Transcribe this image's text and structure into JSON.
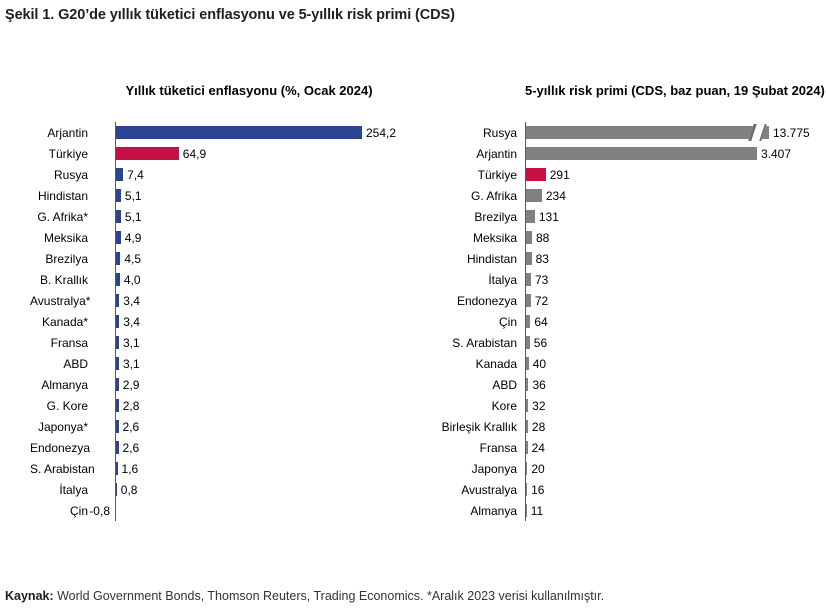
{
  "page_title": "Şekil 1. G20’de yıllık tüketici enflasyonu ve 5-yıllık risk primi (CDS)",
  "footer": {
    "source_label": "Kaynak:",
    "source_text": " World Government Bonds, Thomson Reuters, Trading Economics. *Aralık 2023 verisi kullanılmıştır."
  },
  "colors": {
    "blue": "#2b4492",
    "red": "#c50f45",
    "gray": "#818181",
    "axis": "#595959"
  },
  "chart_data": [
    {
      "type": "bar",
      "orientation": "horizontal",
      "title": "Yıllık tüketici enflasyonu (%, Ocak 2024)",
      "xlabel": "",
      "ylabel": "",
      "xlim": [
        -1,
        262
      ],
      "grid": false,
      "legend": "none",
      "value_labels": true,
      "categories": [
        "Arjantin",
        "Türkiye",
        "Rusya",
        "Hindistan",
        "G. Afrika*",
        "Meksika",
        "Brezilya",
        "B. Krallık",
        "Avustralya*",
        "Kanada*",
        "Fransa",
        "ABD",
        "Almanya",
        "G. Kore",
        "Japonya*",
        "Endonezya",
        "S. Arabistan",
        "İtalya",
        "Çin"
      ],
      "values": [
        254.2,
        64.9,
        7.4,
        5.1,
        5.1,
        4.9,
        4.5,
        4.0,
        3.4,
        3.4,
        3.1,
        3.1,
        2.9,
        2.8,
        2.6,
        2.6,
        1.6,
        0.8,
        -0.8
      ],
      "value_label_texts": [
        "254,2",
        "64,9",
        "7,4",
        "5,1",
        "5,1",
        "4,9",
        "4,5",
        "4,0",
        "3,4",
        "3,4",
        "3,1",
        "3,1",
        "2,9",
        "2,8",
        "2,6",
        "2,6",
        "1,6",
        "0,8",
        "-0,8"
      ],
      "bar_colors": [
        "blue",
        "red",
        "blue",
        "blue",
        "blue",
        "blue",
        "blue",
        "blue",
        "blue",
        "blue",
        "blue",
        "blue",
        "blue",
        "blue",
        "blue",
        "blue",
        "blue",
        "blue",
        "blue"
      ]
    },
    {
      "type": "bar",
      "orientation": "horizontal",
      "title": "5-yıllık risk primi (CDS, baz puan, 19 Şubat 2024)",
      "xlabel": "",
      "ylabel": "",
      "xlim": [
        0,
        3600
      ],
      "grid": false,
      "legend": "none",
      "value_labels": true,
      "axis_break": {
        "category": "Rusya",
        "note": "bar clipped with break marks"
      },
      "categories": [
        "Rusya",
        "Arjantin",
        "Türkiye",
        "G. Afrika",
        "Brezilya",
        "Meksika",
        "Hindistan",
        "İtalya",
        "Endonezya",
        "Çin",
        "S. Arabistan",
        "Kanada",
        "ABD",
        "Kore",
        "Birleşik Krallık",
        "Fransa",
        "Japonya",
        "Avustralya",
        "Almanya"
      ],
      "values": [
        13775,
        3407,
        291,
        234,
        131,
        88,
        83,
        73,
        72,
        64,
        56,
        40,
        36,
        32,
        28,
        24,
        20,
        16,
        11
      ],
      "value_label_texts": [
        "13.775",
        "3.407",
        "291",
        "234",
        "131",
        "88",
        "83",
        "73",
        "72",
        "64",
        "56",
        "40",
        "36",
        "32",
        "28",
        "24",
        "20",
        "16",
        "11"
      ],
      "bar_colors": [
        "gray",
        "gray",
        "red",
        "gray",
        "gray",
        "gray",
        "gray",
        "gray",
        "gray",
        "gray",
        "gray",
        "gray",
        "gray",
        "gray",
        "gray",
        "gray",
        "gray",
        "gray",
        "gray"
      ]
    }
  ]
}
